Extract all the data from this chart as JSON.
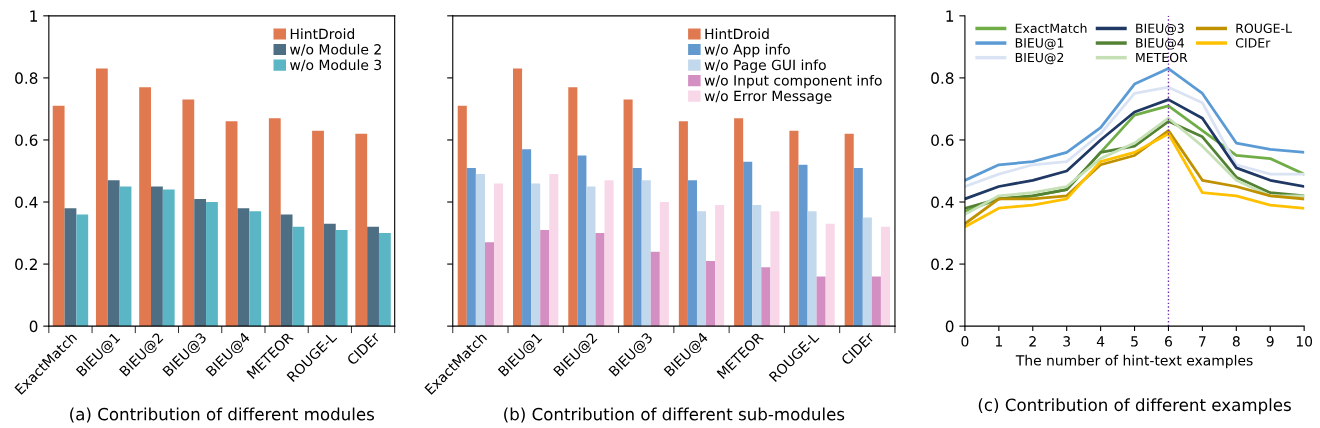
{
  "chart_data": [
    {
      "type": "bar",
      "title": "(a) Contribution of different modules",
      "categories": [
        "ExactMatch",
        "BIEU@1",
        "BIEU@2",
        "BIEU@3",
        "BIEU@4",
        "METEOR",
        "ROUGE-L",
        "CIDEr"
      ],
      "ylim": [
        0,
        1
      ],
      "yticks": [
        0,
        0.2,
        0.4,
        0.6,
        0.8,
        1
      ],
      "grid": false,
      "legend": "top right",
      "series": [
        {
          "name": "HintDroid",
          "color": "#e07850",
          "values": [
            0.71,
            0.83,
            0.77,
            0.73,
            0.66,
            0.67,
            0.63,
            0.62
          ]
        },
        {
          "name": "w/o Module 2",
          "color": "#4e6e83",
          "values": [
            0.38,
            0.47,
            0.45,
            0.41,
            0.38,
            0.36,
            0.33,
            0.32
          ]
        },
        {
          "name": "w/o Module 3",
          "color": "#5ab5c4",
          "values": [
            0.36,
            0.45,
            0.44,
            0.4,
            0.37,
            0.32,
            0.31,
            0.3
          ]
        }
      ]
    },
    {
      "type": "bar",
      "title": "(b) Contribution of different sub-modules",
      "categories": [
        "ExactMatch",
        "BIEU@1",
        "BIEU@2",
        "BIEU@3",
        "BIEU@4",
        "METEOR",
        "ROUGE-L",
        "CIDEr"
      ],
      "ylim": [
        0,
        1
      ],
      "yticks": [
        0,
        0.2,
        0.4,
        0.6,
        0.8,
        1
      ],
      "grid": false,
      "legend": "top right",
      "tick_labels": "x",
      "series": [
        {
          "name": "HintDroid",
          "color": "#e07850",
          "values": [
            0.71,
            0.83,
            0.77,
            0.73,
            0.66,
            0.67,
            0.63,
            0.62
          ]
        },
        {
          "name": "w/o App info",
          "color": "#6399cf",
          "values": [
            0.51,
            0.57,
            0.55,
            0.51,
            0.47,
            0.53,
            0.52,
            0.51
          ]
        },
        {
          "name": "w/o Page GUI info",
          "color": "#c2d8ec",
          "values": [
            0.49,
            0.46,
            0.45,
            0.47,
            0.37,
            0.39,
            0.37,
            0.35
          ]
        },
        {
          "name": "w/o Input component info",
          "color": "#d48fc2",
          "values": [
            0.27,
            0.31,
            0.3,
            0.24,
            0.21,
            0.19,
            0.16,
            0.16
          ]
        },
        {
          "name": "w/o Error Message",
          "color": "#f8d8e8",
          "values": [
            0.46,
            0.49,
            0.47,
            0.4,
            0.39,
            0.37,
            0.33,
            0.32
          ]
        }
      ]
    },
    {
      "type": "line",
      "title": "(c) Contribution of different examples",
      "xlabel": "The number of hint-text examples",
      "x": [
        0,
        1,
        2,
        3,
        4,
        5,
        6,
        7,
        8,
        9,
        10
      ],
      "xlim": [
        0,
        10
      ],
      "xticks": [
        0,
        1,
        2,
        3,
        4,
        5,
        6,
        7,
        8,
        9,
        10
      ],
      "ylim": [
        0,
        1
      ],
      "yticks": [
        0,
        0.2,
        0.4,
        0.6,
        0.8,
        1
      ],
      "grid": false,
      "legend": "top",
      "marker": "none",
      "line_style": "solid",
      "ref_lines": [
        {
          "axis": "x",
          "value": 6,
          "color": "#7030a0",
          "line_style": "dotted"
        }
      ],
      "series": [
        {
          "name": "ExactMatch",
          "color": "#70ad47",
          "values": [
            0.37,
            0.41,
            0.42,
            0.44,
            0.56,
            0.68,
            0.71,
            0.63,
            0.55,
            0.54,
            0.49
          ]
        },
        {
          "name": "BIEU@1",
          "color": "#5b9bd5",
          "values": [
            0.47,
            0.52,
            0.53,
            0.56,
            0.64,
            0.78,
            0.83,
            0.75,
            0.59,
            0.57,
            0.56
          ]
        },
        {
          "name": "BIEU@2",
          "color": "#dae3f3",
          "values": [
            0.45,
            0.49,
            0.52,
            0.53,
            0.62,
            0.75,
            0.77,
            0.72,
            0.52,
            0.49,
            0.49
          ]
        },
        {
          "name": "BIEU@3",
          "color": "#203864",
          "values": [
            0.41,
            0.45,
            0.47,
            0.5,
            0.6,
            0.69,
            0.73,
            0.67,
            0.51,
            0.47,
            0.45
          ]
        },
        {
          "name": "BIEU@4",
          "color": "#548235",
          "values": [
            0.38,
            0.41,
            0.42,
            0.44,
            0.56,
            0.58,
            0.66,
            0.61,
            0.48,
            0.43,
            0.42
          ]
        },
        {
          "name": "METEOR",
          "color": "#c5e0b4",
          "values": [
            0.36,
            0.42,
            0.43,
            0.45,
            0.54,
            0.59,
            0.67,
            0.58,
            0.47,
            0.42,
            0.42
          ]
        },
        {
          "name": "ROUGE-L",
          "color": "#bf9000",
          "values": [
            0.33,
            0.41,
            0.41,
            0.42,
            0.52,
            0.55,
            0.63,
            0.47,
            0.45,
            0.42,
            0.41
          ]
        },
        {
          "name": "CIDEr",
          "color": "#ffc000",
          "values": [
            0.32,
            0.38,
            0.39,
            0.41,
            0.53,
            0.56,
            0.62,
            0.43,
            0.42,
            0.39,
            0.38
          ]
        }
      ]
    }
  ]
}
